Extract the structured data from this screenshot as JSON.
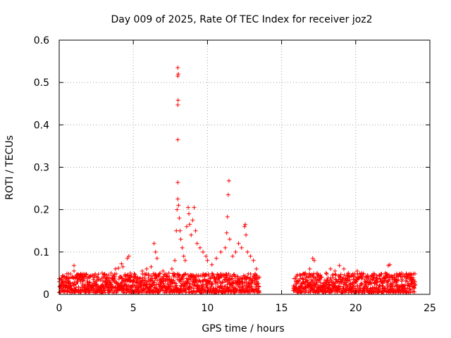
{
  "chart_data": {
    "type": "scatter",
    "title": "Day 009 of 2025, Rate Of TEC Index for receiver joz2",
    "xlabel": "GPS time / hours",
    "ylabel": "ROTI / TECUs",
    "xlim": [
      0,
      25
    ],
    "ylim": [
      0,
      0.6
    ],
    "x_ticks": [
      0,
      5,
      10,
      15,
      20,
      25
    ],
    "x_tick_labels": [
      "0",
      "5",
      "10",
      "15",
      "20",
      "25"
    ],
    "y_ticks": [
      0,
      0.1,
      0.2,
      0.3,
      0.4,
      0.5,
      0.6
    ],
    "y_tick_labels": [
      "0",
      "0.1",
      "0.2",
      "0.3",
      "0.4",
      "0.5",
      "0.6"
    ],
    "grid": true,
    "marker": "+",
    "series_color": "#ff0000",
    "series": [
      {
        "name": "ROTI",
        "points": [
          [
            0.0,
            0.03
          ],
          [
            0.2,
            0.025
          ],
          [
            0.4,
            0.02
          ],
          [
            0.6,
            0.03
          ],
          [
            0.8,
            0.022
          ],
          [
            1.0,
            0.068
          ],
          [
            1.0,
            0.055
          ],
          [
            1.2,
            0.03
          ],
          [
            1.4,
            0.035
          ],
          [
            1.6,
            0.04
          ],
          [
            1.8,
            0.045
          ],
          [
            2.0,
            0.04
          ],
          [
            2.3,
            0.035
          ],
          [
            2.6,
            0.04
          ],
          [
            2.9,
            0.05
          ],
          [
            3.2,
            0.045
          ],
          [
            3.5,
            0.05
          ],
          [
            3.8,
            0.06
          ],
          [
            4.0,
            0.062
          ],
          [
            4.2,
            0.072
          ],
          [
            4.3,
            0.065
          ],
          [
            4.6,
            0.085
          ],
          [
            4.7,
            0.09
          ],
          [
            4.8,
            0.05
          ],
          [
            5.0,
            0.04
          ],
          [
            5.3,
            0.04
          ],
          [
            5.6,
            0.055
          ],
          [
            5.9,
            0.06
          ],
          [
            6.2,
            0.065
          ],
          [
            6.4,
            0.12
          ],
          [
            6.5,
            0.1
          ],
          [
            6.6,
            0.085
          ],
          [
            6.8,
            0.05
          ],
          [
            7.0,
            0.055
          ],
          [
            7.2,
            0.045
          ],
          [
            7.4,
            0.05
          ],
          [
            7.6,
            0.06
          ],
          [
            7.8,
            0.08
          ],
          [
            7.9,
            0.15
          ],
          [
            7.95,
            0.2
          ],
          [
            8.0,
            0.447
          ],
          [
            8.02,
            0.458
          ],
          [
            8.0,
            0.515
          ],
          [
            8.03,
            0.52
          ],
          [
            8.0,
            0.535
          ],
          [
            8.0,
            0.365
          ],
          [
            8.0,
            0.264
          ],
          [
            8.0,
            0.225
          ],
          [
            8.05,
            0.21
          ],
          [
            8.1,
            0.18
          ],
          [
            8.15,
            0.15
          ],
          [
            8.2,
            0.13
          ],
          [
            8.3,
            0.11
          ],
          [
            8.4,
            0.09
          ],
          [
            8.5,
            0.08
          ],
          [
            8.6,
            0.16
          ],
          [
            8.7,
            0.205
          ],
          [
            8.75,
            0.19
          ],
          [
            8.8,
            0.165
          ],
          [
            8.9,
            0.14
          ],
          [
            9.0,
            0.175
          ],
          [
            9.1,
            0.205
          ],
          [
            9.2,
            0.15
          ],
          [
            9.3,
            0.12
          ],
          [
            9.5,
            0.11
          ],
          [
            9.7,
            0.1
          ],
          [
            9.9,
            0.09
          ],
          [
            10.0,
            0.08
          ],
          [
            10.3,
            0.07
          ],
          [
            10.6,
            0.085
          ],
          [
            10.9,
            0.1
          ],
          [
            11.2,
            0.11
          ],
          [
            11.3,
            0.145
          ],
          [
            11.35,
            0.183
          ],
          [
            11.4,
            0.235
          ],
          [
            11.45,
            0.268
          ],
          [
            11.5,
            0.13
          ],
          [
            11.7,
            0.09
          ],
          [
            11.9,
            0.1
          ],
          [
            12.1,
            0.12
          ],
          [
            12.3,
            0.11
          ],
          [
            12.5,
            0.16
          ],
          [
            12.55,
            0.165
          ],
          [
            12.6,
            0.14
          ],
          [
            12.7,
            0.1
          ],
          [
            12.9,
            0.09
          ],
          [
            13.1,
            0.08
          ],
          [
            13.3,
            0.06
          ],
          [
            13.5,
            0.04
          ],
          [
            15.8,
            0.02
          ],
          [
            16.0,
            0.03
          ],
          [
            16.3,
            0.045
          ],
          [
            16.6,
            0.05
          ],
          [
            16.9,
            0.06
          ],
          [
            17.1,
            0.085
          ],
          [
            17.2,
            0.08
          ],
          [
            17.4,
            0.05
          ],
          [
            17.7,
            0.04
          ],
          [
            18.0,
            0.05
          ],
          [
            18.3,
            0.06
          ],
          [
            18.6,
            0.055
          ],
          [
            18.9,
            0.068
          ],
          [
            19.2,
            0.06
          ],
          [
            19.5,
            0.05
          ],
          [
            19.8,
            0.045
          ],
          [
            20.1,
            0.055
          ],
          [
            20.4,
            0.05
          ],
          [
            20.8,
            0.045
          ],
          [
            21.2,
            0.04
          ],
          [
            21.6,
            0.045
          ],
          [
            22.0,
            0.05
          ],
          [
            22.2,
            0.068
          ],
          [
            22.3,
            0.07
          ],
          [
            22.5,
            0.04
          ],
          [
            22.8,
            0.045
          ],
          [
            23.1,
            0.05
          ],
          [
            23.4,
            0.048
          ],
          [
            23.7,
            0.045
          ],
          [
            24.0,
            0.03
          ]
        ],
        "background_band": {
          "segments": [
            {
              "x_start": 0.0,
              "x_end": 13.5
            },
            {
              "x_start": 15.8,
              "x_end": 24.0
            }
          ],
          "typical_range": [
            0.0,
            0.045
          ]
        }
      }
    ]
  }
}
